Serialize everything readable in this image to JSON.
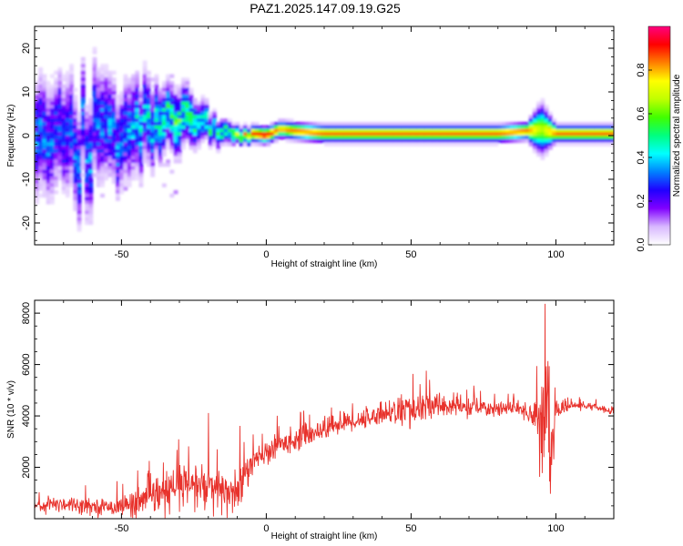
{
  "page": {
    "title": "PAZ1.2025.147.09.19.G25"
  },
  "chart_data": [
    {
      "type": "heatmap",
      "title": "PAZ1.2025.147.09.19.G25",
      "xlabel": "Height of straight line (km)",
      "ylabel": "Frequency (Hz)",
      "xlim": [
        -80,
        120
      ],
      "ylim": [
        -25,
        25
      ],
      "x_ticks": [
        -50,
        0,
        50,
        100
      ],
      "y_ticks": [
        -20,
        -10,
        0,
        10,
        20
      ],
      "colorbar": {
        "label": "Normalized spectral amplitude",
        "range": [
          0,
          1
        ],
        "ticks": [
          "0.0",
          "0.2",
          "0.4",
          "0.6",
          "0.8"
        ],
        "colormap": [
          "#ffffff",
          "#d8b8ff",
          "#8000ff",
          "#2000ff",
          "#0080ff",
          "#00ffff",
          "#00ff80",
          "#40ff00",
          "#c0ff00",
          "#ffff00",
          "#ff8000",
          "#ff0000",
          "#ff0080"
        ]
      },
      "ridge": {
        "x": [
          -80,
          -70,
          -60,
          -50,
          -45,
          -40,
          -35,
          -30,
          -25,
          -20,
          -15,
          -10,
          -5,
          0,
          5,
          10,
          20,
          30,
          40,
          50,
          60,
          70,
          80,
          90,
          95,
          100,
          110,
          120
        ],
        "freq": [
          0,
          -1,
          0,
          0,
          1,
          2,
          4,
          4,
          3,
          2,
          1,
          0.5,
          0.5,
          0,
          1.5,
          1,
          0.5,
          0.5,
          0.5,
          0.5,
          0.5,
          0.5,
          0.5,
          1,
          1.5,
          0.5,
          0.5,
          0.5
        ],
        "amplitude": [
          0.35,
          0.3,
          0.35,
          0.35,
          0.4,
          0.45,
          0.5,
          0.55,
          0.55,
          0.55,
          0.55,
          0.75,
          0.9,
          0.95,
          0.8,
          0.85,
          0.85,
          0.85,
          0.85,
          0.85,
          0.85,
          0.85,
          0.85,
          0.85,
          0.65,
          0.85,
          0.85,
          0.85
        ],
        "spread": [
          7,
          7,
          7,
          6,
          6,
          5,
          4,
          4,
          3,
          2,
          1.5,
          1,
          1,
          1,
          1,
          1,
          1,
          1,
          1,
          1,
          1,
          1,
          1,
          1,
          3,
          1,
          1,
          1
        ]
      }
    },
    {
      "type": "line",
      "xlabel": "Height of straight line (km)",
      "ylabel": "SNR (10 * v/v)",
      "xlim": [
        -80,
        120
      ],
      "ylim": [
        0,
        8500
      ],
      "x_ticks": [
        -50,
        0,
        50,
        100
      ],
      "y_ticks": [
        2000,
        4000,
        6000,
        8000
      ],
      "color": "#e8322c",
      "series": [
        {
          "x": [
            -80,
            -75,
            -70,
            -65,
            -60,
            -55,
            -50,
            -45,
            -40,
            -35,
            -30,
            -25,
            -20,
            -15,
            -10,
            -5,
            0,
            5,
            10,
            15,
            20,
            25,
            30,
            35,
            40,
            45,
            50,
            55,
            60,
            65,
            70,
            75,
            80,
            85,
            90,
            93,
            95,
            96,
            97,
            98,
            100,
            105,
            110,
            115,
            120
          ],
          "y": [
            500,
            550,
            600,
            550,
            500,
            450,
            500,
            600,
            800,
            1000,
            1200,
            1300,
            1200,
            1000,
            1100,
            2200,
            2500,
            2900,
            3100,
            3300,
            3500,
            3700,
            3800,
            3900,
            4100,
            4200,
            4200,
            4300,
            4400,
            4400,
            4300,
            4300,
            4300,
            4300,
            4200,
            3900,
            3500,
            5000,
            5500,
            2000,
            4200,
            4400,
            4400,
            4300,
            4200
          ],
          "noise": [
            200,
            250,
            300,
            250,
            250,
            250,
            300,
            500,
            650,
            700,
            750,
            800,
            850,
            800,
            900,
            450,
            400,
            400,
            380,
            380,
            380,
            360,
            340,
            320,
            340,
            500,
            500,
            520,
            450,
            350,
            300,
            280,
            250,
            220,
            320,
            800,
            1500,
            2500,
            3000,
            2000,
            250,
            140,
            120,
            120,
            120
          ]
        }
      ]
    }
  ]
}
